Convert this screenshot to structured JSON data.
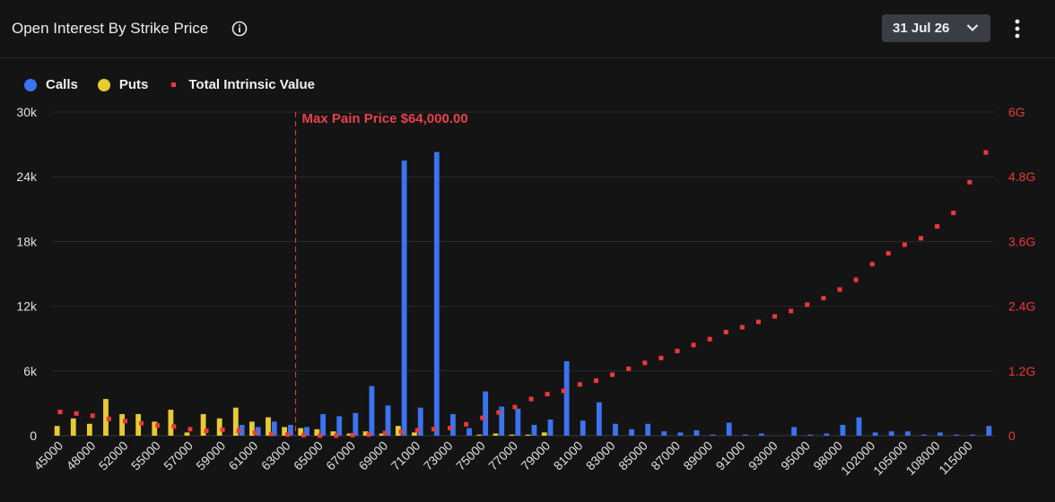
{
  "header": {
    "title": "Open Interest By Strike Price",
    "date_value": "31 Jul 26",
    "info_icon": "info-icon",
    "chevron_icon": "chevron-down-icon",
    "menu_icon": "more-vertical-icon"
  },
  "legend": {
    "calls": "Calls",
    "puts": "Puts",
    "intrinsic": "Total Intrinsic Value"
  },
  "colors": {
    "calls": "#3b74f0",
    "puts": "#e8cb32",
    "intrinsic": "#e83a3a",
    "maxpain": "#e8414a"
  },
  "chart_data": {
    "type": "bar",
    "title": "Open Interest By Strike Price",
    "max_pain": {
      "label": "Max Pain Price $64,000.00",
      "strike": 64000
    },
    "y_left": {
      "ticks": [
        "0",
        "6k",
        "12k",
        "18k",
        "24k",
        "30k"
      ],
      "ylim": [
        0,
        30000
      ]
    },
    "y_right": {
      "ticks": [
        "0",
        "1.2G",
        "2.4G",
        "3.6G",
        "4.8G",
        "6G"
      ],
      "ylim": [
        0,
        6000000000
      ]
    },
    "x_tick_labels": [
      "45000",
      "48000",
      "52000",
      "55000",
      "57000",
      "59000",
      "61000",
      "63000",
      "65000",
      "67000",
      "69000",
      "71000",
      "73000",
      "75000",
      "77000",
      "79000",
      "81000",
      "83000",
      "85000",
      "87000",
      "89000",
      "91000",
      "93000",
      "95000",
      "98000",
      "102000",
      "105000",
      "108000",
      "115000"
    ],
    "strikes": [
      45000,
      47000,
      48000,
      50000,
      52000,
      54000,
      55000,
      56000,
      57000,
      58000,
      59000,
      60000,
      61000,
      62000,
      63000,
      64000,
      65000,
      66000,
      67000,
      68000,
      69000,
      70000,
      71000,
      72000,
      73000,
      74000,
      75000,
      76000,
      77000,
      78000,
      79000,
      80000,
      81000,
      82000,
      83000,
      84000,
      85000,
      86000,
      87000,
      88000,
      89000,
      90000,
      91000,
      92000,
      93000,
      94000,
      95000,
      96000,
      98000,
      100000,
      102000,
      104000,
      105000,
      106000,
      108000,
      110000,
      115000,
      120000
    ],
    "series": [
      {
        "name": "Calls",
        "axis": "left",
        "values": [
          0,
          0,
          0,
          0,
          0,
          0,
          0,
          0,
          0,
          0,
          0,
          1000,
          800,
          1300,
          1000,
          800,
          2000,
          1800,
          2100,
          4600,
          2800,
          25500,
          2600,
          26300,
          2000,
          700,
          4100,
          2700,
          2500,
          1000,
          1500,
          6900,
          1400,
          3100,
          1100,
          600,
          1100,
          400,
          300,
          500,
          100,
          1200,
          100,
          200,
          0,
          800,
          100,
          200,
          1000,
          1700,
          300,
          400,
          400,
          100,
          300,
          100,
          100,
          900
        ]
      },
      {
        "name": "Puts",
        "axis": "left",
        "values": [
          900,
          1600,
          1100,
          3400,
          2000,
          2000,
          1300,
          2400,
          300,
          2000,
          1600,
          2600,
          1300,
          1700,
          800,
          700,
          600,
          400,
          200,
          400,
          200,
          900,
          300,
          0,
          0,
          0,
          100,
          200,
          100,
          100,
          300,
          0,
          0,
          0,
          0,
          0,
          0,
          0,
          0,
          0,
          0,
          0,
          0,
          0,
          0,
          0,
          0,
          0,
          0,
          0,
          0,
          0,
          0,
          0,
          0,
          0,
          0,
          0
        ]
      },
      {
        "name": "Total Intrinsic Value",
        "axis": "right",
        "values": [
          440000000,
          410000000,
          370000000,
          310000000,
          270000000,
          230000000,
          190000000,
          170000000,
          120000000,
          90000000,
          110000000,
          90000000,
          60000000,
          30000000,
          20000000,
          10000000,
          0,
          0,
          10000000,
          20000000,
          50000000,
          70000000,
          100000000,
          120000000,
          140000000,
          210000000,
          330000000,
          430000000,
          530000000,
          680000000,
          770000000,
          830000000,
          950000000,
          1020000000,
          1130000000,
          1240000000,
          1350000000,
          1440000000,
          1570000000,
          1680000000,
          1790000000,
          1920000000,
          2010000000,
          2110000000,
          2210000000,
          2310000000,
          2430000000,
          2550000000,
          2710000000,
          2890000000,
          3180000000,
          3380000000,
          3540000000,
          3660000000,
          3880000000,
          4130000000,
          4700000000,
          5250000000
        ]
      }
    ]
  }
}
